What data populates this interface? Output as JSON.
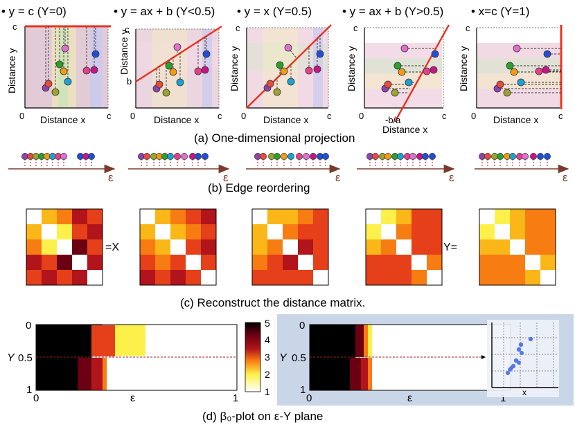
{
  "colors": {
    "projection_line": "#e8321e",
    "axis_arrow": "#7b3b2c",
    "dashed_red": "#a0201a",
    "panel_d_bg": "#c9d6e8",
    "dot_colors": [
      "#8e44ad",
      "#e74c3c",
      "#9ca42f",
      "#2ca02c",
      "#f39c12",
      "#1ca1d6",
      "#e83e8c",
      "#c71585",
      "#1f4fd6",
      "#e070d0"
    ],
    "heatmap_scale": [
      "#000000",
      "#6a0012",
      "#b1141b",
      "#e5401a",
      "#f77c12",
      "#fbb718",
      "#fdf04a",
      "#fffbd2",
      "#ffffff"
    ]
  },
  "panel_a": {
    "titles": [
      "• y = c (Υ=0)",
      "• y = ax + b (Υ<0.5)",
      "• y = x (Υ=0.5)",
      "• y = ax + b (Υ>0.5)",
      "• x=c (Υ=1)"
    ],
    "ylabel": "Distance y",
    "xlabel": "Distance x",
    "tick_c": "c",
    "tick_0": "0",
    "tick_b": "b",
    "tick_neg_b_a": "-b/a",
    "caption": "(a) One-dimensional projection"
  },
  "panel_b": {
    "axis_label": "ε",
    "caption": "(b) Edge reordering"
  },
  "panel_c": {
    "label_x": "=X",
    "label_y": "Y=",
    "caption": "(c) Reconstruct the distance matrix."
  },
  "panel_d": {
    "yticks": [
      "0",
      "0.5",
      "1"
    ],
    "ylabel": "Υ",
    "xticks_left": [
      "0",
      "1"
    ],
    "xtick_right_start": "0",
    "xtick_right_end": "1",
    "xlabel": "ε",
    "colorbar_ticks": [
      "5",
      "4",
      "3",
      "2",
      "1"
    ],
    "inset_xlabel": "x",
    "caption": "(d) β₀-plot on ε-Υ plane"
  }
}
